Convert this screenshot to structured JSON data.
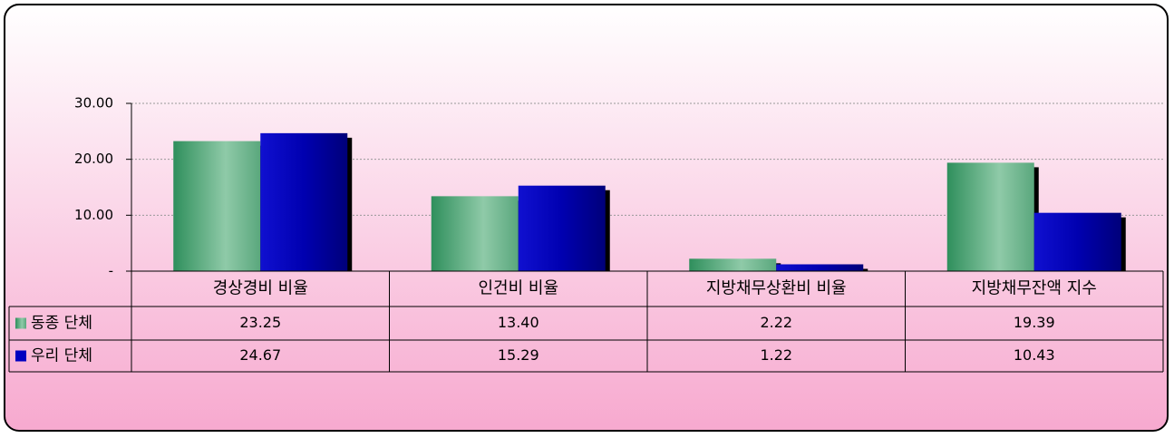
{
  "chart_data": {
    "type": "bar",
    "categories": [
      "경상경비 비율",
      "인건비 비율",
      "지방채무상환비 비율",
      "지방채무잔액 지수"
    ],
    "series": [
      {
        "name": "동종 단체",
        "color": "#4fa37a",
        "values": [
          23.25,
          13.4,
          2.22,
          19.39
        ],
        "value_labels": [
          "23.25",
          "13.40",
          "2.22",
          "19.39"
        ]
      },
      {
        "name": "우리 단체",
        "color": "#0000c0",
        "values": [
          24.67,
          15.29,
          1.22,
          10.43
        ],
        "value_labels": [
          "24.67",
          "15.29",
          "1.22",
          "10.43"
        ]
      }
    ],
    "ylim": [
      0,
      30
    ],
    "yticks": [
      {
        "value": 0,
        "label": "-"
      },
      {
        "value": 10,
        "label": "10.00"
      },
      {
        "value": 20,
        "label": "20.00"
      },
      {
        "value": 30,
        "label": "30.00"
      }
    ],
    "grid": true
  }
}
